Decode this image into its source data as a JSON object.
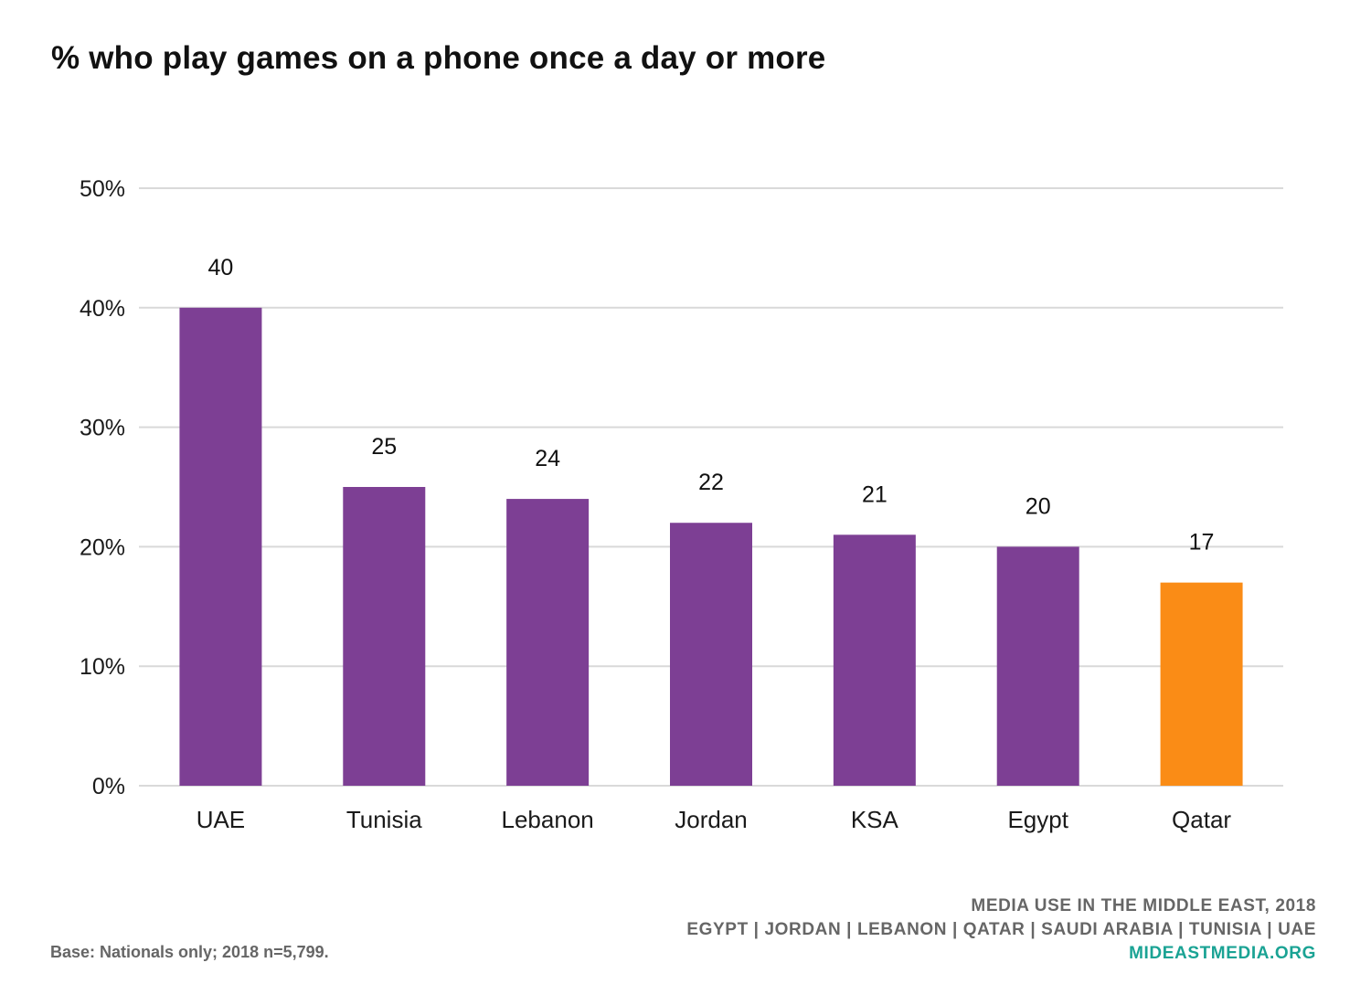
{
  "chart_data": {
    "type": "bar",
    "title": "% who play games on a phone once a day or more",
    "categories": [
      "UAE",
      "Tunisia",
      "Lebanon",
      "Jordan",
      "KSA",
      "Egypt",
      "Qatar"
    ],
    "values": [
      40,
      25,
      24,
      22,
      21,
      20,
      17
    ],
    "value_labels": [
      "40",
      "25",
      "24",
      "22",
      "21",
      "20",
      "17"
    ],
    "yticks": [
      "0%",
      "10%",
      "20%",
      "30%",
      "40%",
      "50%"
    ],
    "ylim": [
      0,
      50
    ],
    "grid": true,
    "xlabel": "",
    "ylabel": "",
    "colors": {
      "default": "#7d3f94",
      "highlight": "#fa8c16",
      "highlight_category": "Qatar"
    }
  },
  "footer": {
    "base": "Base: Nationals only; 2018 n=5,799.",
    "source_line1": "MEDIA USE IN THE MIDDLE EAST, 2018",
    "source_line2": "EGYPT | JORDAN | LEBANON | QATAR | SAUDI ARABIA | TUNISIA | UAE",
    "website": "MIDEASTMEDIA.ORG"
  }
}
